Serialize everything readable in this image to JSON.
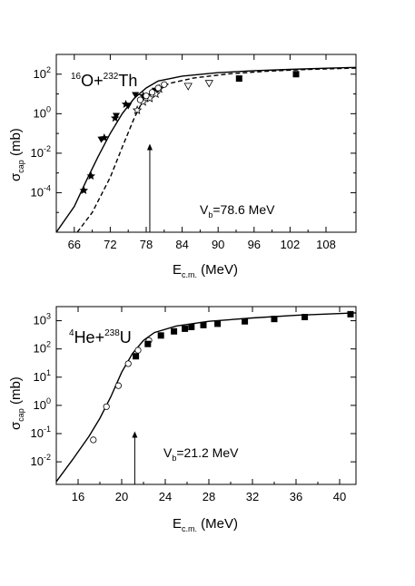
{
  "chart_data": [
    {
      "type": "scatter",
      "panel": "16O+232Th",
      "reaction": {
        "a": "16",
        "p": "O+",
        "b": "232",
        "t": "Th"
      },
      "xlabel": {
        "main": "E",
        "sub": "c.m.",
        "unit": " (MeV)"
      },
      "ylabel": {
        "main": "σ",
        "sub": "cap",
        "unit": " (mb)"
      },
      "xlim": [
        63,
        113
      ],
      "ylog": true,
      "ylim_exp": [
        -6,
        3
      ],
      "xticks": [
        66,
        72,
        78,
        84,
        90,
        96,
        102,
        108
      ],
      "yticks_exp": [
        -4,
        -2,
        0,
        2
      ],
      "barrier": {
        "x": 78.6,
        "label_main": "V",
        "label_sub": "b",
        "label_value": "=78.6 MeV",
        "y_from": 1e-07,
        "y_to": 0.03
      },
      "series": [
        {
          "marker": "star",
          "points": [
            [
              67.6,
              0.00013
            ],
            [
              68.8,
              0.0007
            ],
            [
              71.0,
              0.06
            ],
            [
              72.8,
              0.6
            ],
            [
              74.6,
              3.0
            ],
            [
              77.5,
              8.0
            ]
          ]
        },
        {
          "marker": "triangle-down",
          "points": [
            [
              70.5,
              0.05
            ],
            [
              73.0,
              0.8
            ],
            [
              75.0,
              2.5
            ],
            [
              76.2,
              9.0
            ],
            [
              79.5,
              15.0
            ]
          ]
        },
        {
          "marker": "hollow-star",
          "points": [
            [
              76.5,
              1.5
            ],
            [
              77.5,
              4.0
            ],
            [
              78.6,
              6.0
            ],
            [
              79.6,
              10.0
            ],
            [
              80.2,
              18.0
            ]
          ]
        },
        {
          "marker": "hollow-circle",
          "points": [
            [
              77.0,
              5.0
            ],
            [
              78.0,
              8.0
            ],
            [
              79.0,
              12.0
            ],
            [
              80.0,
              20.0
            ],
            [
              81.0,
              30.0
            ]
          ]
        },
        {
          "marker": "hollow-triangle",
          "points": [
            [
              85.0,
              25.0
            ],
            [
              88.5,
              35.0
            ]
          ]
        },
        {
          "marker": "square",
          "points": [
            [
              93.5,
              60.0
            ],
            [
              103.0,
              100.0
            ]
          ]
        }
      ],
      "curves": [
        {
          "style": "solid",
          "points": [
            [
              63,
              5e-07
            ],
            [
              66,
              2e-05
            ],
            [
              68,
              0.0004
            ],
            [
              70,
              0.007
            ],
            [
              72,
              0.1
            ],
            [
              74,
              1.0
            ],
            [
              76,
              6.0
            ],
            [
              78,
              20.0
            ],
            [
              80,
              45.0
            ],
            [
              84,
              80.0
            ],
            [
              90,
              120.0
            ],
            [
              96,
              150.0
            ],
            [
              102,
              175.0
            ],
            [
              108,
              200.0
            ],
            [
              113,
              220.0
            ]
          ]
        },
        {
          "style": "dashed",
          "points": [
            [
              66.5,
              5e-07
            ],
            [
              69,
              1e-05
            ],
            [
              72,
              0.0006
            ],
            [
              74,
              0.02
            ],
            [
              76,
              0.6
            ],
            [
              77.5,
              5.0
            ],
            [
              79,
              14.0
            ],
            [
              82,
              35.0
            ],
            [
              86,
              65.0
            ],
            [
              92,
              105.0
            ],
            [
              98,
              140.0
            ],
            [
              104,
              170.0
            ],
            [
              113,
              205.0
            ]
          ]
        }
      ]
    },
    {
      "type": "scatter",
      "panel": "4He+238U",
      "reaction": {
        "a": "4",
        "p": "He+",
        "b": "238",
        "t": "U"
      },
      "xlabel": {
        "main": "E",
        "sub": "c.m.",
        "unit": " (MeV)"
      },
      "ylabel": {
        "main": "σ",
        "sub": "cap",
        "unit": " (mb)"
      },
      "xlim": [
        14,
        41.5
      ],
      "ylog": true,
      "ylim_exp": [
        -2.8,
        3.5
      ],
      "xticks": [
        16,
        20,
        24,
        28,
        32,
        36,
        40
      ],
      "yticks_exp": [
        -2,
        -1,
        0,
        1,
        2,
        3
      ],
      "barrier": {
        "x": 21.2,
        "label_main": "V",
        "label_sub": "b",
        "label_value": "=21.2 MeV",
        "y_from": 0.0016,
        "y_to": 0.12
      },
      "series": [
        {
          "marker": "hollow-circle",
          "points": [
            [
              17.4,
              0.06
            ],
            [
              18.6,
              0.9
            ],
            [
              19.7,
              5.0
            ],
            [
              20.6,
              30.0
            ],
            [
              21.5,
              90.0
            ],
            [
              22.5,
              200.0
            ]
          ]
        },
        {
          "marker": "square",
          "points": [
            [
              21.3,
              55.0
            ],
            [
              22.4,
              150.0
            ],
            [
              23.6,
              300.0
            ],
            [
              24.8,
              420.0
            ],
            [
              25.8,
              520.0
            ],
            [
              26.4,
              600.0
            ],
            [
              27.5,
              700.0
            ],
            [
              28.8,
              780.0
            ],
            [
              31.3,
              950.0
            ],
            [
              34.0,
              1150.0
            ],
            [
              36.8,
              1350.0
            ],
            [
              41.0,
              1700.0
            ]
          ]
        }
      ],
      "curves": [
        {
          "style": "solid",
          "points": [
            [
              14,
              0.002
            ],
            [
              15.5,
              0.012
            ],
            [
              17,
              0.08
            ],
            [
              18,
              0.35
            ],
            [
              19,
              2.0
            ],
            [
              20,
              15.0
            ],
            [
              21,
              70.0
            ],
            [
              22,
              200.0
            ],
            [
              23,
              380.0
            ],
            [
              25,
              650.0
            ],
            [
              28,
              950.0
            ],
            [
              32,
              1250.0
            ],
            [
              36,
              1550.0
            ],
            [
              41.5,
              1900.0
            ]
          ]
        }
      ]
    }
  ]
}
